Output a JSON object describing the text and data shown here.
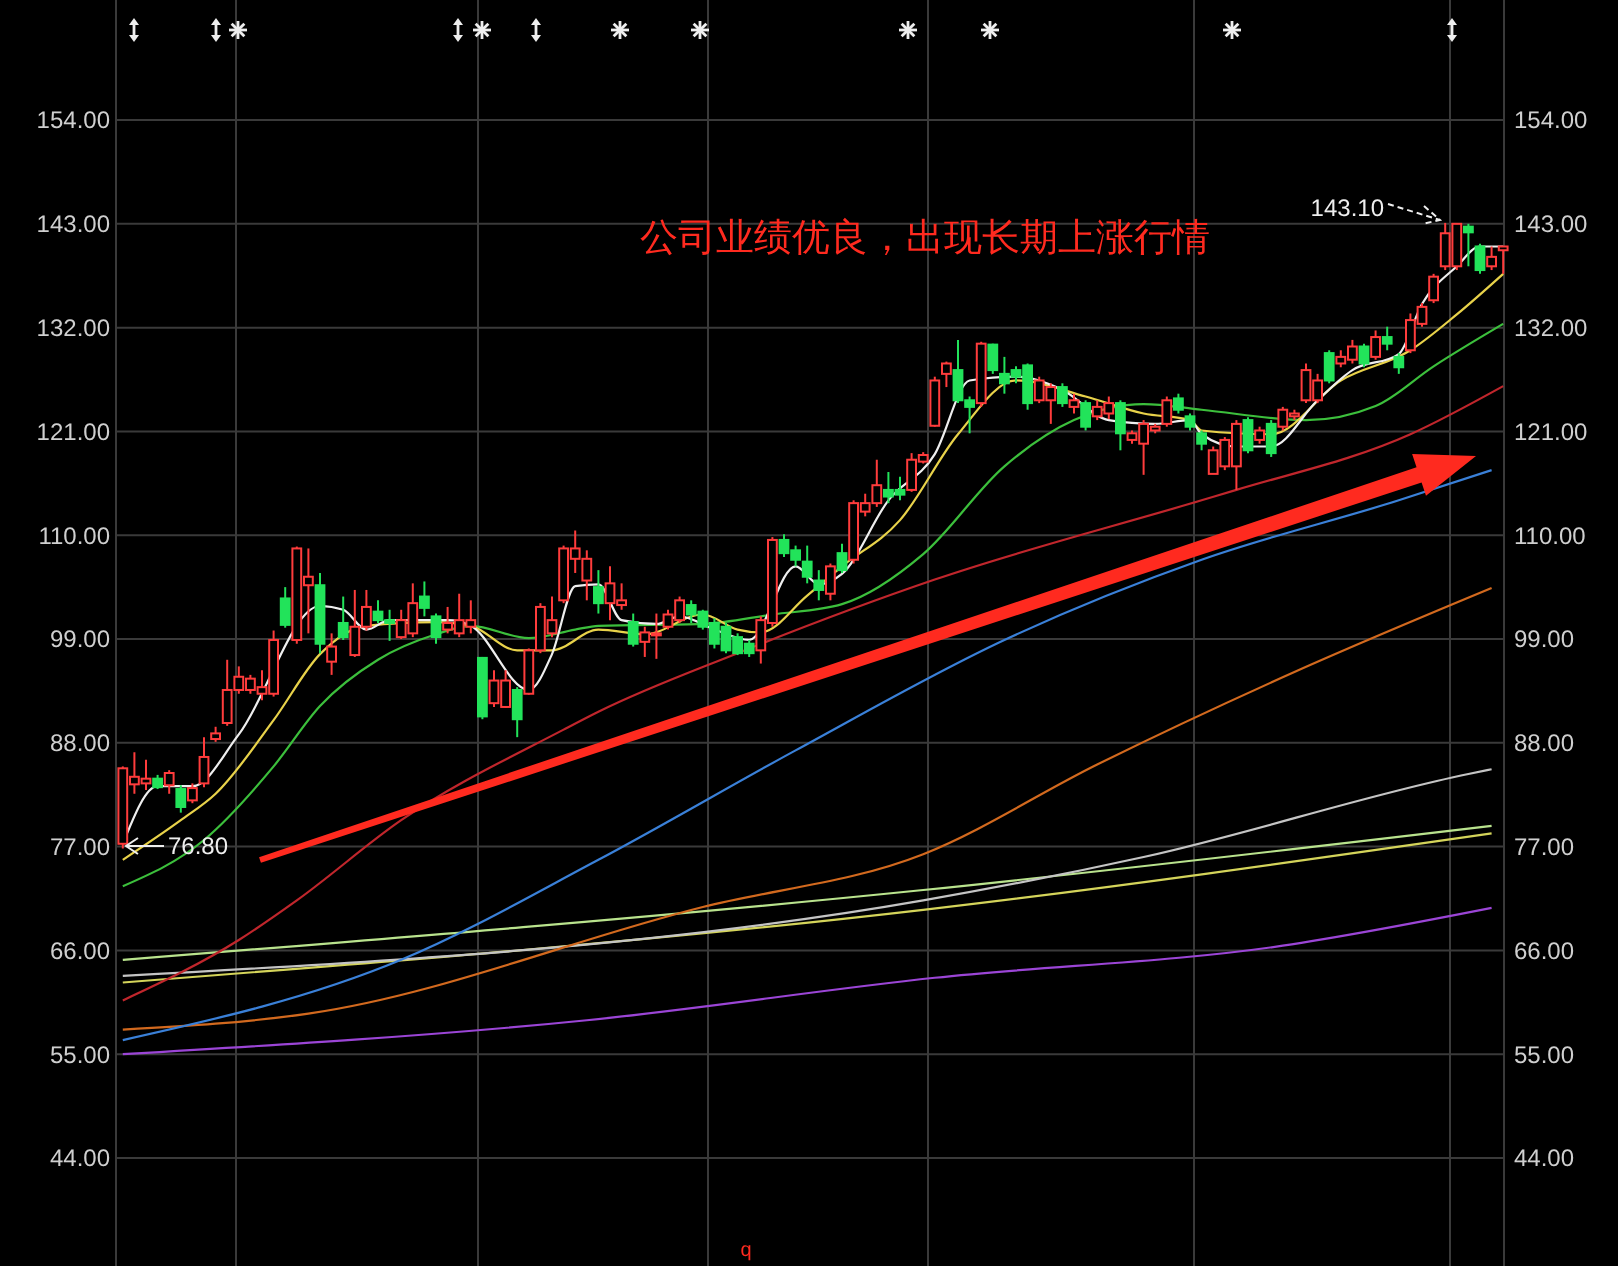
{
  "chart_data": {
    "type": "candlestick",
    "categories": [
      null,
      null,
      null,
      null,
      null,
      null,
      null,
      null,
      null,
      null,
      null,
      null,
      null,
      null,
      null,
      null,
      null,
      null,
      null,
      null,
      null,
      null,
      null,
      null,
      null,
      null,
      null,
      null,
      null,
      null,
      null,
      null,
      null,
      null,
      null,
      null,
      null,
      null,
      null,
      null,
      null,
      null,
      null,
      null,
      null,
      null,
      null,
      null,
      null,
      null,
      null,
      null,
      null,
      null,
      null,
      null,
      null,
      null,
      null,
      null,
      null,
      null,
      null,
      null,
      null,
      null,
      null,
      null,
      null,
      null,
      null,
      null,
      null,
      null,
      null,
      null,
      null,
      null,
      null,
      null,
      null,
      null,
      null,
      null,
      null,
      null,
      null,
      null,
      null,
      null,
      null,
      null,
      null,
      null,
      null,
      null,
      null,
      null,
      null,
      null,
      null,
      null,
      null,
      null,
      null,
      null,
      null,
      null,
      null,
      null,
      null,
      null,
      null,
      null,
      null,
      null,
      null,
      null,
      null,
      null
    ],
    "ohlc": [
      [
        77.3,
        85.5,
        76.8,
        85.3
      ],
      [
        83.6,
        87.0,
        82.6,
        84.4
      ],
      [
        83.7,
        86.2,
        83.0,
        84.2
      ],
      [
        84.2,
        84.6,
        83.1,
        83.3
      ],
      [
        83.5,
        85.1,
        82.6,
        84.8
      ],
      [
        83.1,
        83.5,
        80.6,
        81.2
      ],
      [
        81.9,
        83.7,
        81.6,
        83.2
      ],
      [
        83.7,
        88.6,
        83.3,
        86.5
      ],
      [
        88.4,
        89.7,
        88.1,
        89.0
      ],
      [
        90.1,
        96.8,
        89.8,
        93.6
      ],
      [
        93.6,
        96.1,
        93.2,
        95.0
      ],
      [
        93.6,
        95.2,
        93.2,
        94.8
      ],
      [
        93.2,
        95.7,
        92.5,
        93.9
      ],
      [
        93.2,
        99.9,
        92.9,
        98.9
      ],
      [
        103.3,
        104.5,
        100.2,
        100.5
      ],
      [
        98.9,
        108.8,
        98.5,
        108.6
      ],
      [
        104.7,
        108.6,
        99.6,
        105.6
      ],
      [
        104.7,
        106.0,
        97.5,
        98.5
      ],
      [
        96.6,
        99.6,
        95.2,
        98.2
      ],
      [
        100.7,
        103.5,
        98.9,
        99.2
      ],
      [
        97.3,
        104.2,
        97.1,
        100.3
      ],
      [
        100.3,
        104.2,
        99.9,
        102.4
      ],
      [
        101.9,
        103.1,
        100.7,
        101.0
      ],
      [
        101.0,
        102.1,
        98.8,
        100.7
      ],
      [
        99.2,
        102.1,
        99.0,
        101.0
      ],
      [
        99.6,
        104.9,
        99.2,
        102.8
      ],
      [
        103.5,
        105.1,
        101.4,
        102.3
      ],
      [
        101.4,
        101.7,
        98.5,
        99.2
      ],
      [
        100.0,
        102.4,
        99.6,
        100.7
      ],
      [
        99.6,
        103.8,
        99.2,
        101.0
      ],
      [
        100.3,
        103.1,
        99.6,
        101.0
      ],
      [
        97.0,
        97.1,
        90.5,
        90.8
      ],
      [
        92.2,
        95.7,
        91.8,
        94.6
      ],
      [
        91.8,
        95.7,
        91.7,
        94.6
      ],
      [
        93.6,
        93.9,
        88.6,
        90.5
      ],
      [
        93.2,
        98.0,
        93.1,
        97.8
      ],
      [
        97.8,
        102.8,
        97.5,
        102.4
      ],
      [
        99.6,
        103.5,
        99.2,
        101.0
      ],
      [
        103.1,
        108.9,
        102.8,
        108.6
      ],
      [
        107.5,
        110.5,
        106.0,
        108.6
      ],
      [
        105.2,
        108.4,
        103.1,
        107.5
      ],
      [
        104.5,
        106.3,
        101.7,
        102.8
      ],
      [
        102.8,
        106.7,
        101.0,
        104.9
      ],
      [
        102.6,
        104.9,
        102.1,
        103.1
      ],
      [
        100.8,
        101.7,
        98.2,
        98.5
      ],
      [
        98.7,
        100.3,
        97.1,
        99.7
      ],
      [
        99.5,
        101.7,
        96.9,
        99.6
      ],
      [
        100.3,
        102.1,
        100.0,
        101.6
      ],
      [
        101.0,
        103.5,
        100.7,
        103.1
      ],
      [
        102.6,
        103.1,
        100.7,
        101.6
      ],
      [
        101.9,
        102.1,
        100.0,
        100.3
      ],
      [
        100.7,
        101.2,
        98.0,
        98.5
      ],
      [
        100.3,
        100.7,
        97.5,
        97.8
      ],
      [
        99.2,
        99.6,
        97.3,
        97.5
      ],
      [
        98.5,
        98.9,
        97.1,
        97.5
      ],
      [
        97.8,
        101.4,
        96.4,
        101.0
      ],
      [
        100.7,
        109.8,
        100.3,
        109.5
      ],
      [
        109.5,
        110.1,
        107.7,
        108.1
      ],
      [
        108.4,
        108.9,
        106.7,
        107.4
      ],
      [
        107.2,
        108.9,
        104.9,
        105.6
      ],
      [
        105.2,
        106.3,
        103.1,
        104.2
      ],
      [
        103.8,
        107.0,
        103.1,
        106.7
      ],
      [
        108.1,
        109.1,
        106.0,
        106.3
      ],
      [
        107.4,
        113.7,
        107.0,
        113.4
      ],
      [
        112.5,
        114.4,
        112.0,
        113.4
      ],
      [
        113.4,
        118.0,
        113.0,
        115.3
      ],
      [
        114.8,
        116.7,
        113.4,
        114.1
      ],
      [
        114.8,
        116.2,
        113.7,
        114.3
      ],
      [
        114.8,
        118.7,
        114.6,
        118.0
      ],
      [
        117.8,
        118.8,
        117.6,
        118.5
      ],
      [
        121.6,
        126.8,
        121.5,
        126.4
      ],
      [
        127.1,
        128.4,
        125.7,
        128.2
      ],
      [
        127.5,
        130.7,
        124.0,
        124.3
      ],
      [
        124.3,
        124.7,
        120.8,
        123.6
      ],
      [
        124.0,
        130.5,
        123.6,
        130.3
      ],
      [
        130.2,
        130.3,
        127.1,
        127.5
      ],
      [
        127.1,
        128.9,
        125.0,
        126.1
      ],
      [
        127.5,
        127.9,
        126.1,
        126.8
      ],
      [
        128.0,
        128.2,
        123.3,
        124.0
      ],
      [
        124.3,
        126.8,
        124.0,
        126.4
      ],
      [
        124.3,
        126.1,
        121.8,
        125.7
      ],
      [
        125.7,
        126.1,
        123.6,
        124.0
      ],
      [
        123.6,
        125.0,
        122.9,
        124.3
      ],
      [
        124.0,
        124.3,
        121.1,
        121.5
      ],
      [
        122.6,
        124.3,
        122.2,
        123.6
      ],
      [
        122.9,
        124.7,
        122.3,
        124.0
      ],
      [
        124.0,
        124.3,
        119.0,
        120.8
      ],
      [
        120.1,
        121.1,
        119.7,
        120.8
      ],
      [
        119.7,
        122.2,
        116.4,
        121.8
      ],
      [
        121.1,
        121.8,
        120.8,
        121.5
      ],
      [
        121.8,
        124.7,
        121.5,
        124.3
      ],
      [
        124.5,
        125.0,
        122.9,
        123.3
      ],
      [
        122.6,
        122.9,
        121.1,
        121.5
      ],
      [
        120.8,
        121.1,
        119.0,
        119.7
      ],
      [
        116.5,
        119.4,
        116.5,
        119.0
      ],
      [
        117.3,
        120.4,
        116.9,
        120.1
      ],
      [
        117.3,
        122.2,
        114.8,
        121.8
      ],
      [
        122.2,
        122.5,
        118.7,
        119.0
      ],
      [
        120.1,
        121.5,
        119.7,
        121.1
      ],
      [
        121.8,
        122.2,
        118.3,
        118.7
      ],
      [
        121.5,
        123.6,
        121.1,
        123.3
      ],
      [
        122.6,
        123.3,
        122.2,
        122.9
      ],
      [
        124.3,
        128.2,
        124.0,
        127.5
      ],
      [
        124.3,
        127.1,
        124.0,
        126.4
      ],
      [
        129.3,
        129.6,
        126.1,
        126.4
      ],
      [
        128.2,
        129.6,
        127.8,
        128.9
      ],
      [
        128.6,
        130.7,
        128.2,
        130.0
      ],
      [
        130.0,
        130.3,
        127.8,
        128.2
      ],
      [
        128.9,
        131.7,
        128.6,
        131.0
      ],
      [
        131.0,
        132.1,
        129.6,
        130.3
      ],
      [
        128.9,
        129.3,
        127.1,
        127.8
      ],
      [
        129.6,
        133.5,
        129.3,
        132.8
      ],
      [
        132.4,
        134.6,
        132.1,
        134.2
      ],
      [
        134.9,
        137.7,
        134.6,
        137.4
      ],
      [
        138.5,
        143.1,
        138.1,
        142.0
      ],
      [
        138.5,
        143.0,
        138.1,
        143.0
      ],
      [
        142.7,
        143.0,
        138.5,
        142.1
      ],
      [
        140.6,
        140.9,
        137.7,
        138.1
      ],
      [
        138.5,
        140.6,
        138.1,
        139.5
      ],
      [
        140.2,
        140.6,
        137.7,
        140.6
      ]
    ],
    "colors": [
      "#ff3c3c",
      "#ff3c3c",
      "#ff3c3c",
      "#22e35a",
      "#ff3c3c",
      "#22e35a",
      "#ff3c3c",
      "#ff3c3c",
      "#ff3c3c",
      "#ff3c3c",
      "#ff3c3c",
      "#ff3c3c",
      "#ff3c3c",
      "#ff3c3c",
      "#22e35a",
      "#ff3c3c",
      "#ff3c3c",
      "#22e35a",
      "#ff3c3c",
      "#22e35a",
      "#ff3c3c",
      "#ff3c3c",
      "#22e35a",
      "#22e35a",
      "#ff3c3c",
      "#ff3c3c",
      "#22e35a",
      "#22e35a",
      "#ff3c3c",
      "#ff3c3c",
      "#ff3c3c",
      "#22e35a",
      "#ff3c3c",
      "#ff3c3c",
      "#22e35a",
      "#ff3c3c",
      "#ff3c3c",
      "#ff3c3c",
      "#ff3c3c",
      "#ff3c3c",
      "#ff3c3c",
      "#22e35a",
      "#ff3c3c",
      "#ff3c3c",
      "#22e35a",
      "#ff3c3c",
      "#ff3c3c",
      "#ff3c3c",
      "#ff3c3c",
      "#22e35a",
      "#22e35a",
      "#22e35a",
      "#22e35a",
      "#22e35a",
      "#22e35a",
      "#ff3c3c",
      "#ff3c3c",
      "#22e35a",
      "#22e35a",
      "#22e35a",
      "#22e35a",
      "#ff3c3c",
      "#22e35a",
      "#ff3c3c",
      "#ff3c3c",
      "#ff3c3c",
      "#22e35a",
      "#22e35a",
      "#ff3c3c",
      "#ff3c3c",
      "#ff3c3c",
      "#ff3c3c",
      "#22e35a",
      "#22e35a",
      "#ff3c3c",
      "#22e35a",
      "#22e35a",
      "#22e35a",
      "#22e35a",
      "#ff3c3c",
      "#ff3c3c",
      "#22e35a",
      "#ff3c3c",
      "#22e35a",
      "#ff3c3c",
      "#ff3c3c",
      "#22e35a",
      "#ff3c3c",
      "#ff3c3c",
      "#ff3c3c",
      "#ff3c3c",
      "#22e35a",
      "#22e35a",
      "#22e35a",
      "#ff3c3c",
      "#ff3c3c",
      "#ff3c3c",
      "#22e35a",
      "#ff3c3c",
      "#22e35a",
      "#ff3c3c",
      "#ff3c3c",
      "#ff3c3c",
      "#ff3c3c",
      "#22e35a",
      "#ff3c3c",
      "#ff3c3c",
      "#22e35a",
      "#ff3c3c",
      "#22e35a",
      "#22e35a",
      "#ff3c3c",
      "#ff3c3c",
      "#ff3c3c",
      "#ff3c3c",
      "#ff3c3c",
      "#22e35a",
      "#22e35a",
      "#ff3c3c",
      "#ff3c3c"
    ],
    "series": [
      {
        "type": "line",
        "color": "#9b45d6",
        "values": [
          55.0,
          null,
          null,
          null,
          null,
          null,
          null,
          null,
          null,
          null,
          null,
          null,
          null,
          null,
          null,
          null,
          null,
          null,
          null,
          null,
          null,
          null,
          null,
          null,
          null,
          null,
          null,
          null,
          null,
          null,
          null,
          null,
          null,
          null,
          null,
          null,
          null,
          null,
          null,
          null,
          58.6,
          null,
          null,
          null,
          null,
          null,
          null,
          null,
          null,
          null,
          null,
          null,
          null,
          null,
          null,
          null,
          null,
          null,
          null,
          null,
          null,
          null,
          null,
          null,
          null,
          null,
          null,
          null,
          null,
          null,
          63.1,
          null,
          null,
          null,
          null,
          null,
          null,
          null,
          null,
          null,
          null,
          null,
          null,
          null,
          null,
          null,
          null,
          null,
          null,
          null,
          null,
          null,
          null,
          null,
          null,
          null,
          null,
          null,
          null,
          null,
          66.5,
          null,
          null,
          null,
          null,
          null,
          null,
          null,
          null,
          null,
          null,
          null,
          null,
          null,
          null,
          null,
          null,
          null,
          70.5,
          null
        ]
      },
      {
        "type": "line",
        "color": "#d4d45a",
        "values": [
          62.6,
          null,
          null,
          null,
          null,
          null,
          null,
          null,
          null,
          null,
          null,
          null,
          null,
          null,
          null,
          null,
          null,
          null,
          null,
          null,
          null,
          null,
          null,
          null,
          null,
          null,
          null,
          null,
          null,
          null,
          null,
          null,
          null,
          null,
          null,
          null,
          null,
          null,
          null,
          null,
          null,
          null,
          null,
          null,
          null,
          null,
          null,
          null,
          null,
          null,
          null,
          null,
          null,
          null,
          null,
          null,
          null,
          null,
          null,
          null,
          null,
          null,
          null,
          null,
          null,
          null,
          null,
          null,
          null,
          70.3,
          null,
          null,
          null,
          null,
          null,
          null,
          null,
          null,
          null,
          null,
          null,
          null,
          null,
          null,
          null,
          null,
          null,
          null,
          null,
          null,
          null,
          null,
          null,
          null,
          null,
          null,
          null,
          null,
          null,
          null,
          null,
          null,
          null,
          null,
          null,
          null,
          null,
          null,
          null,
          null,
          null,
          null,
          null,
          null,
          null,
          null,
          null,
          null,
          78.4,
          null
        ]
      },
      {
        "type": "line",
        "color": "#b9e38d",
        "values": [
          65.0,
          null,
          null,
          null,
          null,
          null,
          null,
          null,
          null,
          null,
          null,
          null,
          null,
          null,
          null,
          null,
          null,
          null,
          null,
          null,
          null,
          null,
          null,
          null,
          null,
          null,
          null,
          null,
          null,
          null,
          null,
          null,
          null,
          null,
          null,
          null,
          null,
          null,
          null,
          null,
          null,
          null,
          null,
          null,
          null,
          null,
          null,
          null,
          null,
          null,
          null,
          null,
          null,
          null,
          null,
          null,
          null,
          null,
          null,
          null,
          null,
          null,
          null,
          null,
          null,
          null,
          null,
          null,
          null,
          72.4,
          null,
          null,
          null,
          null,
          null,
          null,
          null,
          null,
          null,
          null,
          null,
          null,
          null,
          null,
          null,
          null,
          null,
          null,
          null,
          null,
          null,
          null,
          null,
          null,
          null,
          null,
          null,
          null,
          null,
          null,
          null,
          null,
          null,
          null,
          null,
          null,
          null,
          null,
          null,
          null,
          null,
          null,
          null,
          null,
          null,
          null,
          null,
          null,
          79.2,
          null
        ]
      },
      {
        "type": "line",
        "color": "#c4c4c4",
        "values": [
          63.3,
          null,
          null,
          null,
          null,
          null,
          null,
          null,
          null,
          null,
          null,
          null,
          null,
          null,
          null,
          null,
          null,
          null,
          null,
          null,
          null,
          null,
          null,
          null,
          null,
          null,
          null,
          null,
          null,
          null,
          null,
          null,
          null,
          null,
          null,
          null,
          null,
          null,
          null,
          null,
          null,
          null,
          null,
          null,
          null,
          null,
          null,
          null,
          null,
          null,
          null,
          null,
          null,
          null,
          null,
          null,
          null,
          null,
          null,
          null,
          null,
          null,
          null,
          null,
          null,
          null,
          null,
          null,
          null,
          71.3,
          null,
          null,
          null,
          null,
          null,
          null,
          null,
          null,
          null,
          null,
          null,
          null,
          null,
          null,
          null,
          null,
          null,
          null,
          75.9,
          null,
          null,
          null,
          null,
          null,
          null,
          null,
          null,
          null,
          null,
          null,
          null,
          null,
          null,
          null,
          null,
          null,
          null,
          null,
          null,
          null,
          null,
          null,
          null,
          null,
          null,
          null,
          84.7,
          null,
          85.2,
          null
        ]
      },
      {
        "type": "line",
        "color": "#d2691e",
        "values": [
          57.6,
          null,
          null,
          null,
          null,
          null,
          null,
          null,
          null,
          null,
          null,
          null,
          null,
          null,
          null,
          null,
          59.3,
          null,
          null,
          null,
          null,
          null,
          null,
          null,
          null,
          null,
          null,
          null,
          null,
          null,
          null,
          null,
          null,
          null,
          null,
          null,
          null,
          null,
          null,
          null,
          null,
          null,
          null,
          null,
          null,
          null,
          null,
          null,
          null,
          null,
          70.6,
          null,
          null,
          null,
          null,
          null,
          null,
          null,
          null,
          null,
          null,
          null,
          null,
          null,
          null,
          null,
          null,
          null,
          null,
          76.2,
          null,
          null,
          null,
          null,
          null,
          null,
          null,
          null,
          null,
          null,
          null,
          null,
          null,
          null,
          85.7,
          null,
          null,
          null,
          null,
          null,
          null,
          null,
          null,
          null,
          null,
          null,
          null,
          null,
          null,
          null,
          null,
          95.5,
          null,
          null,
          null,
          null,
          null,
          null,
          null,
          null,
          null,
          null,
          null,
          null,
          null,
          null,
          null,
          null,
          104.4,
          null
        ]
      },
      {
        "type": "line",
        "color": "#3a80d8",
        "values": [
          56.5,
          null,
          null,
          null,
          null,
          null,
          null,
          null,
          null,
          null,
          null,
          null,
          null,
          null,
          null,
          null,
          null,
          null,
          null,
          null,
          null,
          null,
          null,
          null,
          65.0,
          null,
          null,
          null,
          null,
          null,
          null,
          null,
          null,
          null,
          null,
          null,
          null,
          null,
          null,
          null,
          null,
          75.6,
          null,
          null,
          null,
          null,
          null,
          null,
          null,
          null,
          null,
          null,
          null,
          null,
          null,
          null,
          null,
          null,
          87.2,
          null,
          null,
          null,
          null,
          null,
          null,
          null,
          null,
          null,
          null,
          null,
          null,
          null,
          null,
          null,
          null,
          null,
          98.9,
          null,
          null,
          null,
          null,
          null,
          null,
          null,
          null,
          null,
          null,
          null,
          null,
          null,
          null,
          null,
          null,
          107.4,
          null,
          null,
          null,
          null,
          null,
          null,
          null,
          null,
          null,
          null,
          null,
          null,
          null,
          null,
          null,
          null,
          113.7,
          null,
          null,
          null,
          null,
          null,
          null,
          null,
          116.9,
          null
        ]
      },
      {
        "type": "line",
        "color": "#c0262c",
        "values": [
          60.7,
          null,
          null,
          null,
          null,
          null,
          null,
          null,
          null,
          null,
          67.1,
          null,
          null,
          null,
          null,
          71.3,
          null,
          null,
          null,
          null,
          null,
          null,
          null,
          null,
          79.8,
          null,
          null,
          null,
          null,
          null,
          null,
          null,
          null,
          null,
          null,
          null,
          null,
          null,
          89.4,
          null,
          null,
          91.3,
          null,
          null,
          null,
          null,
          null,
          null,
          null,
          null,
          null,
          null,
          null,
          97.5,
          null,
          null,
          null,
          null,
          null,
          null,
          null,
          null,
          null,
          null,
          null,
          null,
          null,
          null,
          null,
          null,
          105.3,
          null,
          null,
          null,
          null,
          null,
          null,
          null,
          null,
          null,
          null,
          null,
          null,
          null,
          null,
          null,
          null,
          null,
          null,
          null,
          null,
          null,
          null,
          113.7,
          null,
          null,
          114.8,
          null,
          null,
          null,
          null,
          null,
          null,
          null,
          null,
          null,
          null,
          null,
          null,
          null,
          null,
          120.7,
          null,
          null,
          null,
          null,
          null,
          null,
          null,
          125.8
        ]
      },
      {
        "type": "line",
        "color": "#3cbf3c",
        "values": [
          72.8,
          null,
          null,
          null,
          null,
          null,
          null,
          77.7,
          null,
          null,
          null,
          null,
          null,
          85.5,
          null,
          null,
          null,
          91.9,
          null,
          null,
          null,
          null,
          96.8,
          null,
          null,
          null,
          null,
          99.5,
          null,
          null,
          100.4,
          null,
          null,
          null,
          null,
          99.1,
          null,
          null,
          null,
          100.0,
          null,
          100.4,
          null,
          null,
          null,
          null,
          null,
          null,
          null,
          null,
          100.6,
          null,
          null,
          null,
          null,
          null,
          101.6,
          null,
          null,
          null,
          null,
          null,
          102.7,
          null,
          null,
          null,
          null,
          null,
          null,
          108.0,
          null,
          null,
          null,
          null,
          null,
          null,
          117.3,
          null,
          null,
          null,
          null,
          null,
          122.2,
          null,
          null,
          null,
          null,
          null,
          123.9,
          null,
          null,
          null,
          null,
          123.3,
          null,
          null,
          null,
          null,
          null,
          null,
          null,
          null,
          122.2,
          null,
          null,
          null,
          null,
          null,
          123.7,
          null,
          null,
          null,
          null,
          127.9,
          null,
          null,
          null,
          null,
          null,
          132.4
        ]
      },
      {
        "type": "line",
        "color": "#e8d24a",
        "values": [
          75.6,
          null,
          null,
          null,
          null,
          79.8,
          null,
          null,
          82.6,
          null,
          null,
          null,
          null,
          90.4,
          null,
          null,
          null,
          97.4,
          null,
          null,
          null,
          100.4,
          null,
          null,
          null,
          null,
          null,
          100.8,
          null,
          null,
          100.4,
          null,
          null,
          null,
          97.8,
          null,
          null,
          97.8,
          null,
          null,
          null,
          100.0,
          null,
          null,
          null,
          99.5,
          null,
          null,
          null,
          null,
          101.6,
          null,
          null,
          100.0,
          null,
          99.7,
          null,
          null,
          null,
          103.6,
          null,
          null,
          106.7,
          null,
          null,
          null,
          null,
          111.6,
          null,
          null,
          null,
          null,
          120.7,
          null,
          null,
          null,
          null,
          126.4,
          null,
          null,
          null,
          null,
          null,
          124.7,
          null,
          null,
          null,
          null,
          122.9,
          null,
          null,
          null,
          122.2,
          121.1,
          null,
          null,
          null,
          null,
          null,
          120.7,
          null,
          null,
          null,
          null,
          null,
          126.4,
          null,
          null,
          null,
          null,
          null,
          129.6,
          null,
          null,
          null,
          133.4,
          null,
          null,
          null,
          137.7
        ]
      },
      {
        "type": "line",
        "color": "#eeeeee",
        "values": [
          77.3,
          null,
          null,
          83.4,
          null,
          null,
          83.4,
          null,
          null,
          null,
          88.9,
          null,
          null,
          null,
          null,
          null,
          null,
          102.5,
          null,
          102.1,
          null,
          100.0,
          null,
          101.0,
          null,
          null,
          null,
          null,
          101.0,
          null,
          100.4,
          null,
          null,
          null,
          null,
          93.6,
          null,
          97.4,
          null,
          104.6,
          null,
          104.8,
          null,
          101.0,
          null,
          null,
          100.6,
          null,
          101.4,
          null,
          null,
          100.0,
          null,
          null,
          98.9,
          null,
          null,
          null,
          106.7,
          null,
          104.8,
          null,
          105.9,
          null,
          null,
          null,
          113.7,
          null,
          null,
          null,
          118.6,
          null,
          null,
          126.4,
          null,
          null,
          null,
          126.8,
          null,
          null,
          null,
          125.4,
          null,
          null,
          null,
          122.2,
          null,
          null,
          null,
          121.8,
          null,
          null,
          122.2,
          120.7,
          null,
          null,
          119.4,
          null,
          null,
          119.4,
          null,
          null,
          null,
          124.3,
          null,
          null,
          127.5,
          null,
          null,
          null,
          129.2,
          null,
          134.5,
          null,
          null,
          138.5,
          null,
          140.6,
          null,
          140.6
        ]
      }
    ],
    "ylim": [
      33,
      166
    ],
    "yticks": [
      {
        "value": 44,
        "label": "44.00"
      },
      {
        "value": 55,
        "label": "55.00"
      },
      {
        "value": 66,
        "label": "66.00"
      },
      {
        "value": 77,
        "label": "77.00"
      },
      {
        "value": 88,
        "label": "88.00"
      },
      {
        "value": 99,
        "label": "99.00"
      },
      {
        "value": 110,
        "label": "110.00"
      },
      {
        "value": 121,
        "label": "121.00"
      },
      {
        "value": 132,
        "label": "132.00"
      },
      {
        "value": 143,
        "label": "143.00"
      },
      {
        "value": 154,
        "label": "154.00"
      }
    ],
    "y2lim": [
      33,
      166
    ],
    "y2ticks": [
      {
        "value": 44,
        "label": "44.00"
      },
      {
        "value": 55,
        "label": "55.00"
      },
      {
        "value": 66,
        "label": "66.00"
      },
      {
        "value": 77,
        "label": "77.00"
      },
      {
        "value": 88,
        "label": "88.00"
      },
      {
        "value": 99,
        "label": "99.00"
      },
      {
        "value": 110,
        "label": "110.00"
      },
      {
        "value": 121,
        "label": "121.00"
      },
      {
        "value": 132,
        "label": "132.00"
      },
      {
        "value": 143,
        "label": "143.00"
      },
      {
        "value": 154,
        "label": "154.00"
      }
    ],
    "grid": true,
    "tick_labels": "y",
    "annotations": [
      "公司业绩优良，出现长期上涨行情",
      "143.10",
      "76.80",
      "q"
    ]
  }
}
